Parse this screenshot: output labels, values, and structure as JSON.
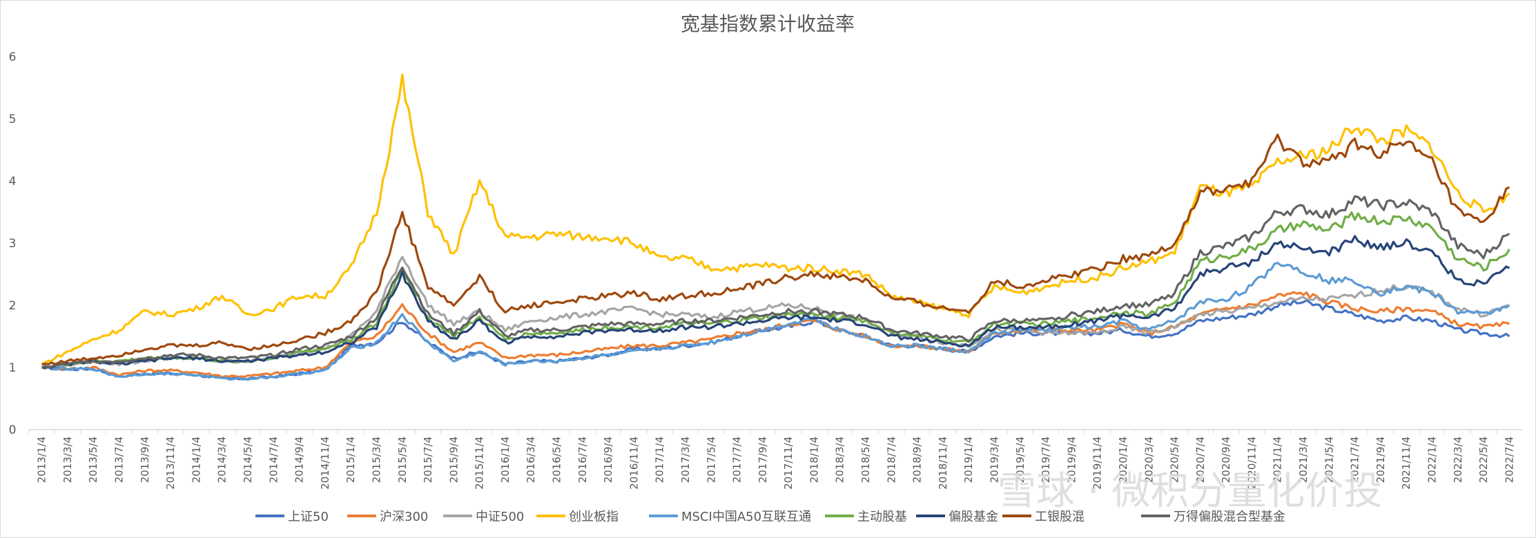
{
  "chart_data": {
    "type": "line",
    "title": "宽基指数累计收益率",
    "ylim": [
      0,
      6
    ],
    "yticks": [
      "0",
      "1",
      "2",
      "3",
      "4",
      "5",
      "6"
    ],
    "xlabel": "",
    "ylabel": "",
    "grid": false,
    "legend_position": "bottom",
    "x": [
      "2013/1/4",
      "2013/3/4",
      "2013/5/4",
      "2013/7/4",
      "2013/9/4",
      "2013/11/4",
      "2014/1/4",
      "2014/3/4",
      "2014/5/4",
      "2014/7/4",
      "2014/9/4",
      "2014/11/4",
      "2015/1/4",
      "2015/3/4",
      "2015/5/4",
      "2015/7/4",
      "2015/9/4",
      "2015/11/4",
      "2016/1/4",
      "2016/3/4",
      "2016/5/4",
      "2016/7/4",
      "2016/9/4",
      "2016/11/4",
      "2017/1/4",
      "2017/3/4",
      "2017/5/4",
      "2017/7/4",
      "2017/9/4",
      "2017/11/4",
      "2018/1/4",
      "2018/3/4",
      "2018/5/4",
      "2018/7/4",
      "2018/9/4",
      "2018/11/4",
      "2019/1/4",
      "2019/3/4",
      "2019/5/4",
      "2019/7/4",
      "2019/9/4",
      "2019/11/4",
      "2020/1/4",
      "2020/3/4",
      "2020/5/4",
      "2020/7/4",
      "2020/9/4",
      "2020/11/4",
      "2021/1/4",
      "2021/3/4",
      "2021/5/4",
      "2021/7/4",
      "2021/9/4",
      "2021/11/4",
      "2022/1/4",
      "2022/3/4",
      "2022/5/4",
      "2022/7/4"
    ],
    "series": [
      {
        "name": "上证50",
        "color": "#4472c4",
        "values": [
          1.0,
          0.97,
          0.98,
          0.85,
          0.9,
          0.9,
          0.88,
          0.82,
          0.82,
          0.85,
          0.9,
          0.95,
          1.35,
          1.4,
          1.75,
          1.4,
          1.15,
          1.25,
          1.05,
          1.1,
          1.1,
          1.15,
          1.2,
          1.3,
          1.3,
          1.35,
          1.4,
          1.5,
          1.6,
          1.65,
          1.75,
          1.6,
          1.5,
          1.35,
          1.35,
          1.3,
          1.25,
          1.5,
          1.55,
          1.55,
          1.55,
          1.55,
          1.6,
          1.5,
          1.55,
          1.75,
          1.8,
          1.85,
          2.0,
          2.05,
          1.95,
          1.85,
          1.75,
          1.8,
          1.75,
          1.6,
          1.55,
          1.5
        ]
      },
      {
        "name": "沪深300",
        "color": "#ed7d31",
        "values": [
          1.0,
          0.98,
          1.0,
          0.88,
          0.95,
          0.95,
          0.92,
          0.86,
          0.86,
          0.9,
          0.95,
          1.0,
          1.4,
          1.5,
          2.0,
          1.55,
          1.25,
          1.4,
          1.15,
          1.2,
          1.2,
          1.25,
          1.3,
          1.35,
          1.35,
          1.4,
          1.45,
          1.55,
          1.6,
          1.7,
          1.75,
          1.6,
          1.5,
          1.35,
          1.35,
          1.3,
          1.25,
          1.55,
          1.6,
          1.6,
          1.6,
          1.6,
          1.7,
          1.55,
          1.65,
          1.85,
          1.95,
          2.0,
          2.15,
          2.2,
          2.05,
          1.95,
          1.9,
          1.95,
          1.9,
          1.7,
          1.65,
          1.7
        ]
      },
      {
        "name": "中证500",
        "color": "#a5a5a5",
        "values": [
          1.0,
          1.05,
          1.1,
          1.05,
          1.1,
          1.15,
          1.15,
          1.1,
          1.1,
          1.15,
          1.25,
          1.3,
          1.5,
          1.9,
          2.8,
          2.0,
          1.7,
          1.9,
          1.6,
          1.75,
          1.8,
          1.85,
          1.9,
          1.95,
          1.85,
          1.85,
          1.8,
          1.9,
          1.95,
          2.0,
          1.95,
          1.85,
          1.75,
          1.55,
          1.5,
          1.4,
          1.35,
          1.6,
          1.6,
          1.55,
          1.55,
          1.55,
          1.65,
          1.55,
          1.65,
          1.85,
          1.9,
          1.95,
          2.05,
          2.1,
          2.1,
          2.15,
          2.25,
          2.3,
          2.2,
          1.95,
          1.85,
          2.0
        ]
      },
      {
        "name": "创业板指",
        "color": "#ffc000",
        "values": [
          1.05,
          1.25,
          1.45,
          1.6,
          1.9,
          1.85,
          1.95,
          2.15,
          1.85,
          1.95,
          2.15,
          2.15,
          2.6,
          3.5,
          5.6,
          3.5,
          2.8,
          4.0,
          3.1,
          3.1,
          3.15,
          3.1,
          3.1,
          3.0,
          2.75,
          2.75,
          2.6,
          2.6,
          2.65,
          2.6,
          2.6,
          2.55,
          2.5,
          2.15,
          2.05,
          1.95,
          1.85,
          2.3,
          2.2,
          2.3,
          2.4,
          2.45,
          2.6,
          2.7,
          2.85,
          3.9,
          3.8,
          3.9,
          4.3,
          4.4,
          4.5,
          4.9,
          4.65,
          4.8,
          4.55,
          3.8,
          3.5,
          3.8
        ]
      },
      {
        "name": "MSCI中国A50互联互通",
        "color": "#5b9bd5",
        "values": [
          1.0,
          0.97,
          0.98,
          0.85,
          0.9,
          0.9,
          0.88,
          0.82,
          0.82,
          0.85,
          0.9,
          0.95,
          1.3,
          1.4,
          1.85,
          1.4,
          1.1,
          1.25,
          1.05,
          1.1,
          1.1,
          1.15,
          1.2,
          1.25,
          1.3,
          1.35,
          1.4,
          1.5,
          1.6,
          1.7,
          1.8,
          1.6,
          1.5,
          1.35,
          1.35,
          1.3,
          1.25,
          1.55,
          1.6,
          1.6,
          1.65,
          1.65,
          1.75,
          1.6,
          1.75,
          2.05,
          2.1,
          2.3,
          2.7,
          2.55,
          2.4,
          2.4,
          2.2,
          2.3,
          2.2,
          1.9,
          1.85,
          2.0
        ]
      },
      {
        "name": "主动股基",
        "color": "#70ad47",
        "values": [
          1.0,
          1.05,
          1.1,
          1.1,
          1.15,
          1.15,
          1.15,
          1.1,
          1.1,
          1.15,
          1.25,
          1.3,
          1.45,
          1.7,
          2.6,
          1.8,
          1.5,
          1.8,
          1.45,
          1.55,
          1.55,
          1.6,
          1.65,
          1.65,
          1.65,
          1.7,
          1.7,
          1.75,
          1.8,
          1.85,
          1.85,
          1.8,
          1.75,
          1.55,
          1.5,
          1.45,
          1.4,
          1.7,
          1.7,
          1.7,
          1.75,
          1.8,
          1.9,
          1.85,
          2.05,
          2.7,
          2.8,
          2.9,
          3.2,
          3.3,
          3.2,
          3.45,
          3.35,
          3.4,
          3.25,
          2.75,
          2.6,
          2.9
        ]
      },
      {
        "name": "偏股基金",
        "color": "#264478",
        "values": [
          1.0,
          1.05,
          1.1,
          1.05,
          1.1,
          1.15,
          1.15,
          1.1,
          1.1,
          1.15,
          1.2,
          1.25,
          1.4,
          1.65,
          2.5,
          1.75,
          1.45,
          1.75,
          1.4,
          1.5,
          1.5,
          1.55,
          1.6,
          1.6,
          1.6,
          1.65,
          1.65,
          1.7,
          1.75,
          1.8,
          1.8,
          1.75,
          1.7,
          1.5,
          1.45,
          1.4,
          1.35,
          1.65,
          1.65,
          1.65,
          1.7,
          1.75,
          1.85,
          1.8,
          1.95,
          2.5,
          2.6,
          2.7,
          3.0,
          2.9,
          2.85,
          3.05,
          2.95,
          3.0,
          2.85,
          2.4,
          2.35,
          2.6
        ]
      },
      {
        "name": "工银股混",
        "color": "#9e480e",
        "values": [
          1.05,
          1.1,
          1.15,
          1.2,
          1.3,
          1.35,
          1.35,
          1.4,
          1.3,
          1.35,
          1.45,
          1.55,
          1.75,
          2.2,
          3.5,
          2.3,
          2.0,
          2.45,
          1.9,
          2.0,
          2.05,
          2.1,
          2.15,
          2.2,
          2.1,
          2.15,
          2.2,
          2.25,
          2.35,
          2.45,
          2.5,
          2.45,
          2.4,
          2.1,
          2.05,
          1.95,
          1.9,
          2.4,
          2.3,
          2.4,
          2.5,
          2.6,
          2.75,
          2.8,
          3.0,
          3.8,
          3.85,
          4.0,
          4.65,
          4.3,
          4.3,
          4.6,
          4.45,
          4.6,
          4.3,
          3.5,
          3.3,
          3.9
        ]
      },
      {
        "name": "万得偏股混合型基金",
        "color": "#636363",
        "values": [
          1.0,
          1.05,
          1.1,
          1.1,
          1.15,
          1.2,
          1.2,
          1.15,
          1.15,
          1.2,
          1.3,
          1.35,
          1.5,
          1.8,
          2.65,
          1.85,
          1.55,
          1.9,
          1.5,
          1.6,
          1.6,
          1.65,
          1.7,
          1.7,
          1.7,
          1.75,
          1.75,
          1.8,
          1.85,
          1.9,
          1.9,
          1.85,
          1.8,
          1.6,
          1.55,
          1.5,
          1.45,
          1.75,
          1.75,
          1.75,
          1.85,
          1.9,
          2.0,
          2.0,
          2.2,
          2.85,
          2.95,
          3.1,
          3.5,
          3.55,
          3.45,
          3.7,
          3.6,
          3.65,
          3.5,
          2.95,
          2.8,
          3.15
        ]
      }
    ]
  },
  "watermark": "雪球 · 微积分量化价投"
}
